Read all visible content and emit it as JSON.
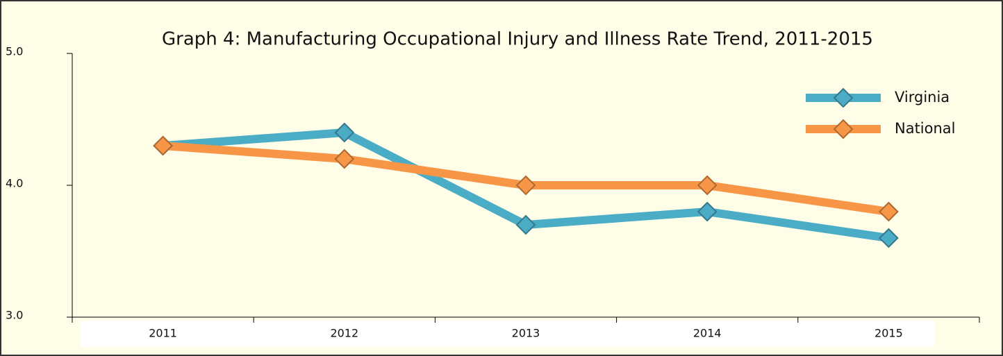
{
  "chart_data": {
    "type": "line",
    "title": "Graph 4: Manufacturing Occupational Injury and Illness Rate Trend, 2011-2015",
    "categories": [
      "2011",
      "2012",
      "2013",
      "2014",
      "2015"
    ],
    "series": [
      {
        "name": "Virginia",
        "color": "#4bacc6",
        "values": [
          4.3,
          4.4,
          3.7,
          3.8,
          3.6
        ]
      },
      {
        "name": "National",
        "color": "#f79646",
        "values": [
          4.3,
          4.2,
          4.0,
          4.0,
          3.8
        ]
      }
    ],
    "ylim": [
      3,
      5
    ],
    "yticks": [
      {
        "value": 3,
        "label": "3.0"
      },
      {
        "value": 4,
        "label": "4.0"
      },
      {
        "value": 5,
        "label": "5.0"
      }
    ],
    "legend": "upper right"
  }
}
